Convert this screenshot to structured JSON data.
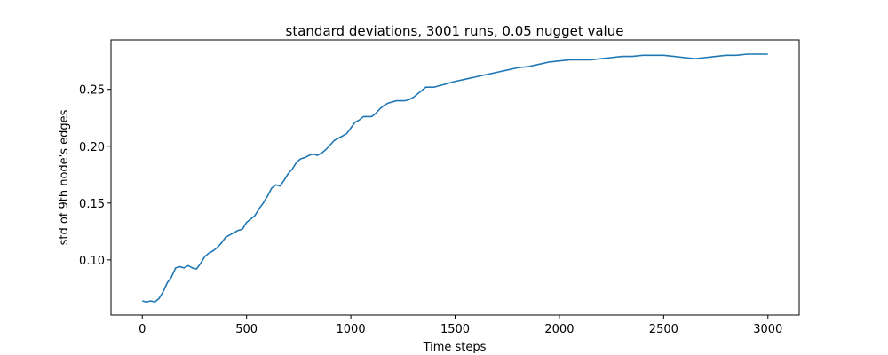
{
  "chart_data": {
    "type": "line",
    "title": "standard deviations, 3001 runs, 0.05 nugget value",
    "xlabel": "Time steps",
    "ylabel": "std of 9th node's edges",
    "xlim": [
      -150,
      3150
    ],
    "ylim": [
      0.0515,
      0.2935
    ],
    "x_ticks": [
      0,
      500,
      1000,
      1500,
      2000,
      2500,
      3000
    ],
    "x_tick_labels": [
      "0",
      "500",
      "1000",
      "1500",
      "2000",
      "2500",
      "3000"
    ],
    "y_ticks": [
      0.1,
      0.15,
      0.2,
      0.25
    ],
    "y_tick_labels": [
      "0.10",
      "0.15",
      "0.20",
      "0.25"
    ],
    "grid": false,
    "legend": "none",
    "series": [
      {
        "color": "#1f77b4",
        "x": [
          0,
          20,
          40,
          60,
          80,
          100,
          120,
          140,
          160,
          180,
          200,
          220,
          240,
          260,
          280,
          300,
          320,
          340,
          360,
          380,
          400,
          420,
          440,
          460,
          480,
          500,
          520,
          540,
          560,
          580,
          600,
          620,
          640,
          660,
          680,
          700,
          720,
          740,
          760,
          780,
          800,
          820,
          840,
          860,
          880,
          900,
          920,
          940,
          960,
          980,
          1000,
          1020,
          1040,
          1060,
          1080,
          1100,
          1120,
          1140,
          1160,
          1180,
          1200,
          1220,
          1240,
          1260,
          1280,
          1300,
          1320,
          1340,
          1360,
          1380,
          1400,
          1420,
          1440,
          1460,
          1480,
          1500,
          1550,
          1600,
          1650,
          1700,
          1750,
          1800,
          1850,
          1900,
          1950,
          2000,
          2050,
          2100,
          2150,
          2200,
          2250,
          2300,
          2350,
          2400,
          2450,
          2500,
          2550,
          2600,
          2650,
          2700,
          2750,
          2800,
          2850,
          2900,
          2950,
          3000
        ],
        "y": [
          0.064,
          0.063,
          0.064,
          0.063,
          0.066,
          0.072,
          0.08,
          0.085,
          0.093,
          0.094,
          0.093,
          0.095,
          0.093,
          0.092,
          0.097,
          0.103,
          0.106,
          0.108,
          0.111,
          0.115,
          0.12,
          0.122,
          0.124,
          0.126,
          0.127,
          0.133,
          0.136,
          0.139,
          0.145,
          0.15,
          0.156,
          0.163,
          0.166,
          0.165,
          0.17,
          0.176,
          0.18,
          0.186,
          0.189,
          0.19,
          0.192,
          0.193,
          0.192,
          0.194,
          0.197,
          0.201,
          0.205,
          0.207,
          0.209,
          0.211,
          0.216,
          0.221,
          0.223,
          0.226,
          0.226,
          0.226,
          0.229,
          0.233,
          0.236,
          0.238,
          0.239,
          0.24,
          0.24,
          0.24,
          0.241,
          0.243,
          0.246,
          0.249,
          0.252,
          0.252,
          0.252,
          0.253,
          0.254,
          0.255,
          0.256,
          0.257,
          0.259,
          0.261,
          0.263,
          0.265,
          0.267,
          0.269,
          0.27,
          0.272,
          0.274,
          0.275,
          0.276,
          0.276,
          0.276,
          0.277,
          0.278,
          0.279,
          0.279,
          0.28,
          0.28,
          0.28,
          0.279,
          0.278,
          0.277,
          0.278,
          0.279,
          0.28,
          0.28,
          0.281,
          0.281,
          0.281
        ]
      }
    ]
  }
}
